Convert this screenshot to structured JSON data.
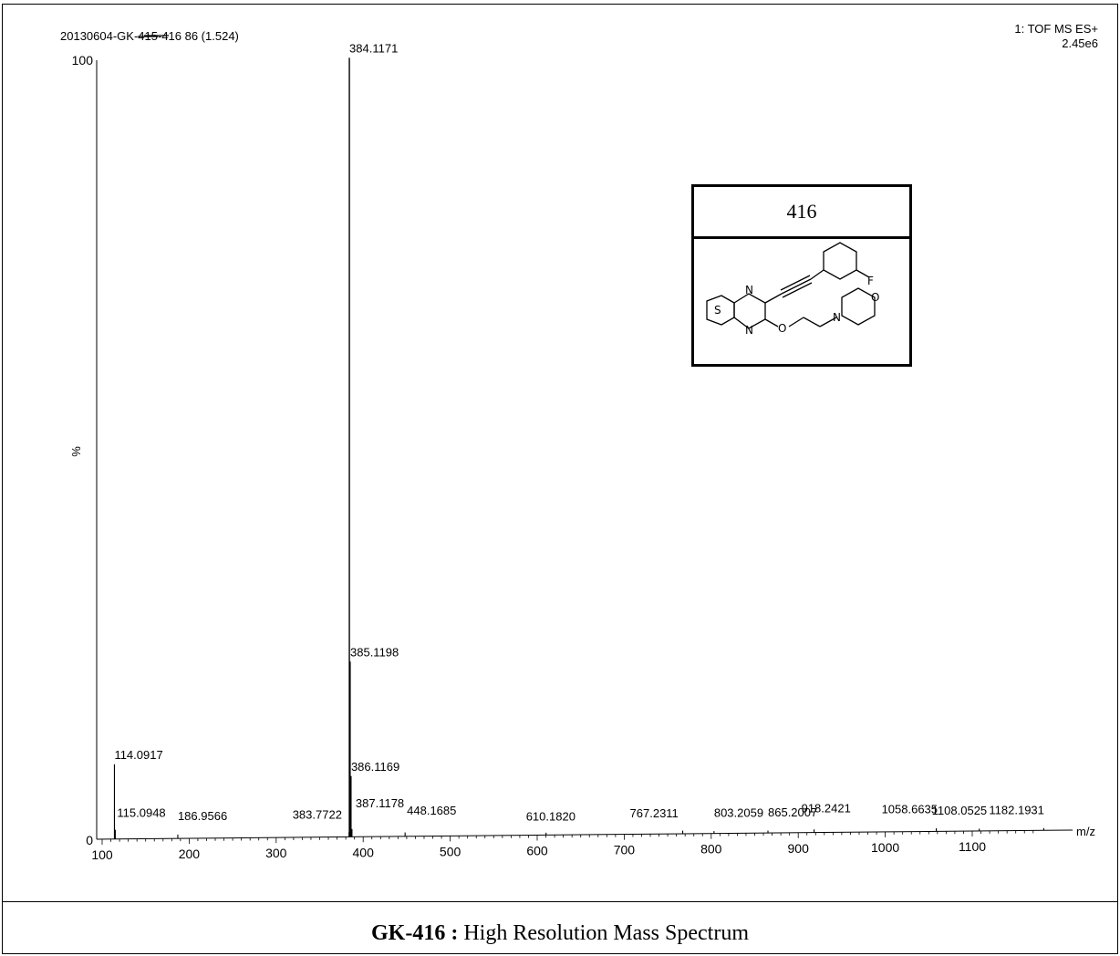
{
  "header": {
    "sample_prefix": "20130604-GK-",
    "sample_struck": "415",
    "sample_suffix": "-416 86 (1.524)",
    "instrument": "1: TOF MS ES+",
    "intensity": "2.45e6"
  },
  "compound": {
    "label": "416",
    "atoms": [
      "S",
      "N",
      "N",
      "F",
      "O",
      "N",
      "O"
    ]
  },
  "caption": {
    "bold": "GK-416 :",
    "text": " High Resolution Mass Spectrum"
  },
  "chart_data": {
    "type": "bar",
    "xlabel": "m/z",
    "ylabel": "%",
    "xlim": [
      100,
      1200
    ],
    "ylim": [
      0,
      100
    ],
    "x_ticks": [
      100,
      200,
      300,
      400,
      500,
      600,
      700,
      800,
      900,
      1000,
      1100
    ],
    "y_ticks": [
      "0",
      "100"
    ],
    "peaks": [
      {
        "mz": 114.0917,
        "label": "114.0917",
        "intensity": 9.6
      },
      {
        "mz": 115.0948,
        "label": "115.0948",
        "intensity": 1.2
      },
      {
        "mz": 186.9566,
        "label": "186.9566",
        "intensity": 0.5
      },
      {
        "mz": 383.7722,
        "label": "383.7722",
        "intensity": 0.6
      },
      {
        "mz": 384.1171,
        "label": "384.1171",
        "intensity": 100
      },
      {
        "mz": 385.1198,
        "label": "385.1198",
        "intensity": 22.5
      },
      {
        "mz": 386.1169,
        "label": "386.1169",
        "intensity": 7.8
      },
      {
        "mz": 387.1178,
        "label": "387.1178",
        "intensity": 1.0
      },
      {
        "mz": 448.1685,
        "label": "448.1685",
        "intensity": 0.5
      },
      {
        "mz": 610.182,
        "label": "610.1820",
        "intensity": 0.3
      },
      {
        "mz": 767.2311,
        "label": "767.2311",
        "intensity": 0.4
      },
      {
        "mz": 803.2059,
        "label": "803.2059",
        "intensity": 0.3
      },
      {
        "mz": 865.2007,
        "label": "865.2007",
        "intensity": 0.3
      },
      {
        "mz": 918.2421,
        "label": "918.2421",
        "intensity": 0.4
      },
      {
        "mz": 1058.6635,
        "label": "1058.6635",
        "intensity": 0.4
      },
      {
        "mz": 1108.0525,
        "label": "1108.0525",
        "intensity": 0.3
      },
      {
        "mz": 1182.1931,
        "label": "1182.1931",
        "intensity": 0.3
      }
    ]
  }
}
